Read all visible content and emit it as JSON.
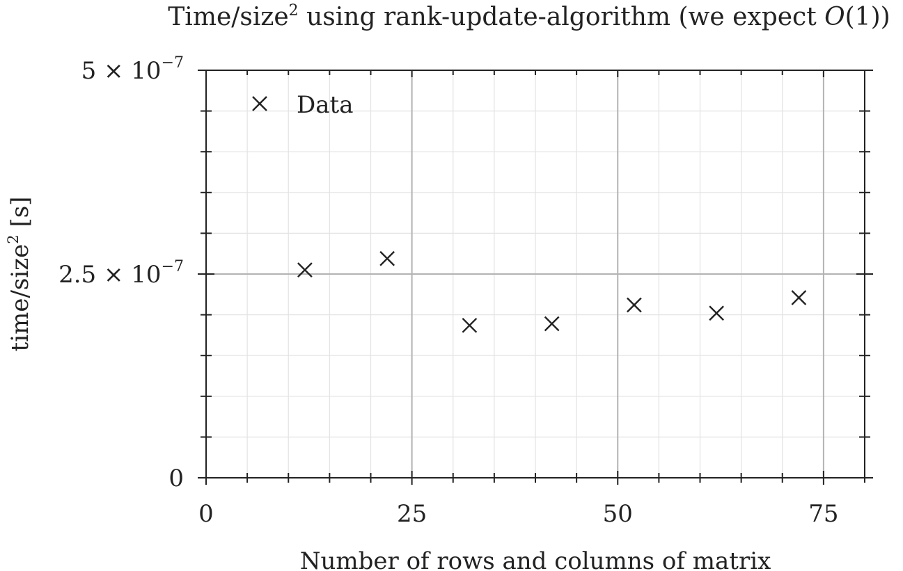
{
  "chart_data": {
    "type": "scatter",
    "title": "Time/size² using rank-update-algorithm (we expect O(1))",
    "title_parts": {
      "prefix": "Time/size",
      "sup": "2",
      "middle": " using rank-update-algorithm (we expect ",
      "italic": "O",
      "suffix": "(1))"
    },
    "xlabel": "Number of rows and columns of matrix",
    "ylabel": "time/size² [s]",
    "ylabel_parts": {
      "prefix": "time/size",
      "sup": "2",
      "suffix": " [s]"
    },
    "xlim": [
      0,
      80
    ],
    "ylim": [
      0,
      5e-07
    ],
    "x_major_ticks": [
      0,
      25,
      50,
      75
    ],
    "x_tick_labels": [
      "0",
      "25",
      "50",
      "75"
    ],
    "x_minor_ticks": [
      5,
      10,
      15,
      20,
      30,
      35,
      40,
      45,
      55,
      60,
      65,
      70,
      80
    ],
    "y_major_ticks": [
      0,
      2.5e-07,
      5e-07
    ],
    "y_tick_labels": [
      {
        "mantissa": "0",
        "times": "",
        "base": "",
        "exp": ""
      },
      {
        "mantissa": "2.5",
        "times": "×",
        "base": "10",
        "exp": "−7"
      },
      {
        "mantissa": "5",
        "times": "×",
        "base": "10",
        "exp": "−7"
      }
    ],
    "y_minor_ticks": [
      5e-08,
      1e-07,
      1.5e-07,
      2e-07,
      3e-07,
      3.5e-07,
      4e-07,
      4.5e-07
    ],
    "grid": true,
    "legend": {
      "position": "top-left",
      "entries": [
        "Data"
      ]
    },
    "series": [
      {
        "name": "Data",
        "marker": "x",
        "color": "#222222",
        "x": [
          12,
          22,
          32,
          42,
          52,
          62,
          72
        ],
        "y": [
          2.55e-07,
          2.69e-07,
          1.87e-07,
          1.89e-07,
          2.12e-07,
          2.02e-07,
          2.21e-07
        ]
      }
    ]
  }
}
